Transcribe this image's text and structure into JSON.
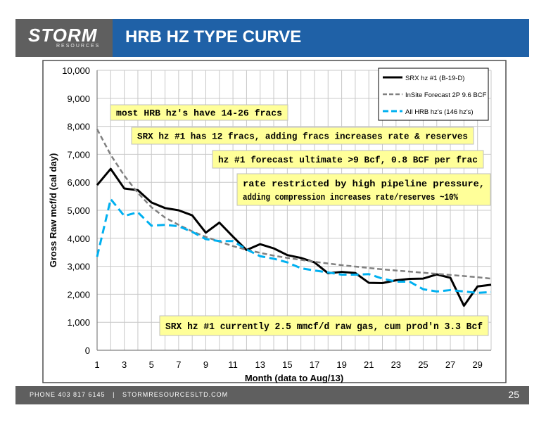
{
  "header": {
    "logo_text": "STORM",
    "logo_subtext": "RESOURCES",
    "title": "HRB HZ TYPE CURVE"
  },
  "footer": {
    "phone": "PHONE 403 817 6145",
    "separator": "|",
    "website": "STORMRESOURCESLTD.COM",
    "page_number": "25"
  },
  "chart_data": {
    "type": "line",
    "xlabel": "Month (data to Aug/13)",
    "ylabel": "Gross Raw mcf/d (cal day)",
    "xlim": [
      1,
      30
    ],
    "ylim": [
      0,
      10000
    ],
    "x_ticks": [
      1,
      3,
      5,
      7,
      9,
      11,
      13,
      15,
      17,
      19,
      21,
      23,
      25,
      27,
      29
    ],
    "y_ticks": [
      0,
      1000,
      2000,
      3000,
      4000,
      5000,
      6000,
      7000,
      8000,
      9000,
      10000
    ],
    "y_tick_labels": [
      "0",
      "1,000",
      "2,000",
      "3,000",
      "4,000",
      "5,000",
      "6,000",
      "7,000",
      "8,000",
      "9,000",
      "10,000"
    ],
    "grid": true,
    "legend_position": "top-right",
    "x": [
      1,
      2,
      3,
      4,
      5,
      6,
      7,
      8,
      9,
      10,
      11,
      12,
      13,
      14,
      15,
      16,
      17,
      18,
      19,
      20,
      21,
      22,
      23,
      24,
      25,
      26,
      27,
      28,
      29,
      30
    ],
    "series": [
      {
        "name": "SRX hz #1 (B-19-D)",
        "color": "#000000",
        "style": "solid",
        "values": [
          5900,
          6480,
          5780,
          5720,
          5280,
          5080,
          5000,
          4820,
          4200,
          4560,
          4060,
          3580,
          3790,
          3640,
          3400,
          3300,
          3140,
          2750,
          2800,
          2760,
          2410,
          2400,
          2500,
          2550,
          2560,
          2710,
          2590,
          1590,
          2280,
          2340
        ]
      },
      {
        "name": "InSite Forecast 2P 9.6 BCF",
        "color": "#808080",
        "style": "dash",
        "values": [
          7900,
          6980,
          6240,
          5620,
          5110,
          4740,
          4480,
          4250,
          4050,
          3880,
          3720,
          3590,
          3480,
          3380,
          3300,
          3230,
          3160,
          3100,
          3040,
          2990,
          2940,
          2890,
          2850,
          2810,
          2770,
          2730,
          2690,
          2650,
          2610,
          2560
        ]
      },
      {
        "name": "All HRB hz's (146 hz's)",
        "color": "#00b0f0",
        "style": "dash",
        "values": [
          3340,
          5400,
          4800,
          4930,
          4450,
          4480,
          4430,
          4230,
          3970,
          3900,
          3900,
          3600,
          3360,
          3270,
          3140,
          2930,
          2850,
          2780,
          2700,
          2700,
          2720,
          2560,
          2450,
          2450,
          2180,
          2100,
          2150,
          2100,
          2050,
          2080
        ]
      }
    ],
    "annotations": [
      "most HRB hz's have 14-26 fracs",
      "SRX hz #1 has 12 fracs, adding fracs increases rate & reserves",
      "hz #1 forecast ultimate >9 Bcf, 0.8 BCF per frac",
      "rate restricted by high pipeline pressure, adding compression increases rate/reserves ~10%",
      "SRX hz #1 currently 2.5 mmcf/d raw gas, cum prod'n 3.3 Bcf"
    ]
  }
}
